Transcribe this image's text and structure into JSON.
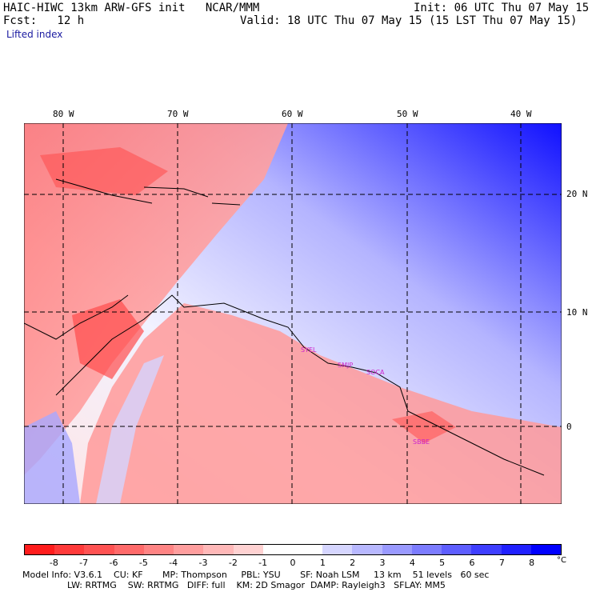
{
  "header": {
    "line1_left": "HAIC-HIWC 13km ARW-GFS init   NCAR/MMM",
    "line1_right": "Init: 06 UTC Thu 07 May 15",
    "line2_left": "Fcst:   12 h",
    "line2_right": "Valid: 18 UTC Thu 07 May 15 (15 LST Thu 07 May 15)",
    "field_name": "Lifted index"
  },
  "map": {
    "lon_labels": [
      "80 W",
      "70 W",
      "60 W",
      "50 W",
      "40 W"
    ],
    "lat_labels": [
      "20 N",
      "10 N",
      "0"
    ],
    "stations": [
      "SYEL",
      "SMJP",
      "SOCA",
      "SBBE"
    ],
    "station_color": "#cc22cc",
    "grid_style": "dashed"
  },
  "colorbar": {
    "labels": [
      "-8",
      "-7",
      "-6",
      "-5",
      "-4",
      "-3",
      "-2",
      "-1",
      "0",
      "1",
      "2",
      "3",
      "4",
      "5",
      "6",
      "7",
      "8"
    ],
    "unit": "°C",
    "colors": [
      "#ff1c1c",
      "#ff3a3a",
      "#ff5252",
      "#ff6a6a",
      "#ff8484",
      "#ff9e9e",
      "#ffb8b8",
      "#ffd2d2",
      "#ffffff",
      "#ffffff",
      "#d6d6ff",
      "#b8b8ff",
      "#9a9aff",
      "#7c7cff",
      "#5e5eff",
      "#3e3eff",
      "#2020ff",
      "#0000ff"
    ]
  },
  "footer": {
    "line1": "Model Info: V3.6.1    CU: KF       MP: Thompson     PBL: YSU       SF: Noah LSM     13 km    51 levels   60 sec",
    "line2": "                LW: RRTMG    SW: RRTMG   DIFF: full    KM: 2D Smagor  DAMP: Rayleigh3   SFLAY: MM5"
  }
}
